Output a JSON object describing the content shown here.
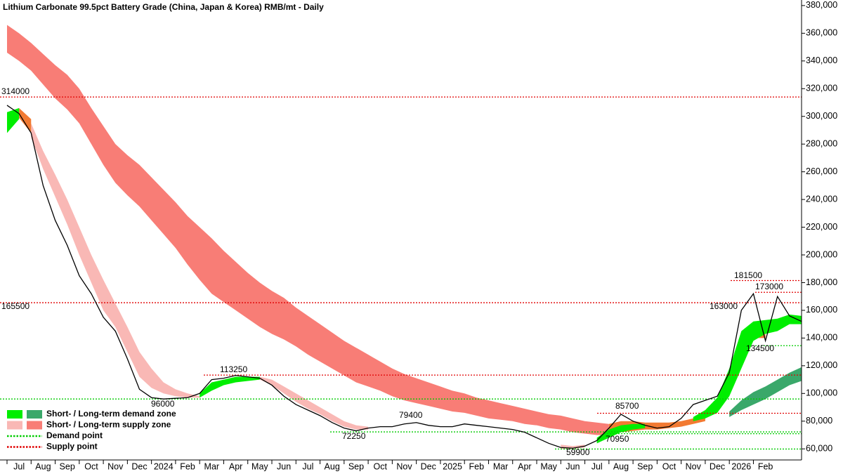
{
  "chart_data": {
    "type": "zone",
    "title": "Lithium Carbonate 99.5pct Battery Grade (China, Japan & Korea) RMB/mt - Daily",
    "categories": [
      "Jul",
      null,
      "Aug",
      null,
      "Sep",
      null,
      "Oct",
      null,
      "Nov",
      null,
      "Dec",
      null,
      "2024",
      null,
      "Feb",
      null,
      "Mar",
      null,
      "Apr",
      null,
      "May",
      null,
      "Jun",
      null,
      "Jul",
      null,
      "Aug",
      null,
      "Sep",
      null,
      "Oct",
      null,
      "Nov",
      null,
      "Dec",
      null,
      "2025",
      null,
      "Feb",
      null,
      "Mar",
      null,
      "Apr",
      null,
      "May",
      null,
      "Jun",
      null,
      "Jul",
      null,
      "Aug",
      null,
      "Sep",
      null,
      "Oct",
      null,
      "Nov",
      null,
      "Dec",
      null,
      "2026",
      null,
      "Feb",
      null,
      null,
      null,
      null
    ],
    "ylim": [
      52000,
      384000
    ],
    "yticks": [
      {
        "value": 60000,
        "label": "60,000"
      },
      {
        "value": 80000,
        "label": "80,000"
      },
      {
        "value": 100000,
        "label": "100,000"
      },
      {
        "value": 120000,
        "label": "120,000"
      },
      {
        "value": 140000,
        "label": "140,000"
      },
      {
        "value": 160000,
        "label": "160,000"
      },
      {
        "value": 180000,
        "label": "180,000"
      },
      {
        "value": 200000,
        "label": "200,000"
      },
      {
        "value": 220000,
        "label": "220,000"
      },
      {
        "value": 240000,
        "label": "240,000"
      },
      {
        "value": 260000,
        "label": "260,000"
      },
      {
        "value": 280000,
        "label": "280,000"
      },
      {
        "value": 300000,
        "label": "300,000"
      },
      {
        "value": 320000,
        "label": "320,000"
      },
      {
        "value": 340000,
        "label": "340,000"
      },
      {
        "value": 360000,
        "label": "360,000"
      },
      {
        "value": 380000,
        "label": "380,000"
      }
    ],
    "price": {
      "color": "#000000",
      "values": [
        308000,
        302000,
        288000,
        250000,
        225000,
        207000,
        185000,
        172000,
        155000,
        145000,
        125000,
        103000,
        97000,
        96000,
        96500,
        97000,
        100000,
        110000,
        111000,
        113000,
        112000,
        111000,
        106000,
        98000,
        92000,
        88000,
        84000,
        79000,
        75000,
        73000,
        75000,
        76000,
        76000,
        78000,
        79000,
        77000,
        76000,
        76000,
        78000,
        77000,
        76000,
        75000,
        74000,
        72000,
        68000,
        64000,
        61000,
        60500,
        62000,
        66000,
        75000,
        85000,
        80000,
        77000,
        75000,
        76000,
        82000,
        92000,
        95000,
        98000,
        115000,
        160000,
        172000,
        138000,
        170000,
        156000,
        152000
      ]
    },
    "bands": [
      {
        "color": "#f87d76",
        "upper": [
          366000,
          360000,
          353000,
          345000,
          337000,
          330000,
          320000,
          306000,
          293000,
          280000,
          272000,
          265000,
          256000,
          247000,
          238000,
          228000,
          220000,
          212000,
          203000,
          195000,
          187000,
          180000,
          174000,
          169000,
          162000,
          156000,
          150000,
          144000,
          138000,
          133000,
          128000,
          123000,
          118000,
          114000,
          111000,
          108000,
          105000,
          102000,
          100000,
          97000,
          95000,
          93000,
          91000,
          89000,
          87000,
          85000,
          84000,
          82000,
          80000,
          79000,
          78000,
          null,
          null,
          null,
          null,
          null,
          null,
          null,
          null,
          null,
          null,
          null,
          null,
          null,
          null,
          null,
          null
        ],
        "lower": [
          346000,
          340000,
          333000,
          323000,
          313000,
          305000,
          295000,
          280000,
          265000,
          252000,
          243000,
          235000,
          225000,
          215000,
          205000,
          193000,
          182000,
          172000,
          166000,
          160000,
          154000,
          148000,
          143000,
          139000,
          134000,
          128000,
          123000,
          118000,
          113000,
          108000,
          105000,
          102000,
          98000,
          95000,
          93000,
          91000,
          89000,
          87000,
          86000,
          84000,
          82000,
          81000,
          80000,
          78000,
          77000,
          75000,
          74000,
          72000,
          71000,
          70000,
          70000,
          null,
          null,
          null,
          null,
          null,
          null,
          null,
          null,
          null,
          null,
          null,
          null,
          null,
          null,
          null,
          null
        ]
      },
      {
        "color": "#f9b8b5",
        "upper": [
          null,
          null,
          295000,
          275000,
          258000,
          240000,
          220000,
          200000,
          182000,
          165000,
          148000,
          130000,
          118000,
          108000,
          103000,
          100000,
          98000,
          null,
          null,
          null,
          null,
          112000,
          110000,
          105000,
          100000,
          95000,
          90000,
          85000,
          80000,
          77000,
          76000,
          null,
          null,
          null,
          null,
          null,
          null,
          null,
          null,
          null,
          null,
          null,
          null,
          null,
          null,
          null,
          63000,
          62000,
          63000,
          null,
          null,
          null,
          null,
          null,
          null,
          null,
          null,
          null,
          null,
          null,
          null,
          null,
          null,
          null,
          null,
          null,
          null
        ],
        "lower": [
          null,
          null,
          285000,
          262000,
          242000,
          222000,
          200000,
          180000,
          160000,
          148000,
          130000,
          112000,
          104000,
          100000,
          98000,
          97000,
          97000,
          null,
          null,
          null,
          null,
          110000,
          106000,
          100000,
          94000,
          89000,
          85000,
          80000,
          76000,
          74000,
          74000,
          null,
          null,
          null,
          null,
          null,
          null,
          null,
          null,
          null,
          null,
          null,
          null,
          null,
          null,
          null,
          60000,
          60000,
          61000,
          null,
          null,
          null,
          null,
          null,
          null,
          null,
          null,
          null,
          null,
          null,
          null,
          null,
          null,
          null,
          null,
          null,
          null
        ]
      },
      {
        "color": "#f27a32",
        "upper": [
          null,
          306000,
          298000,
          null,
          null,
          null,
          null,
          null,
          null,
          null,
          null,
          null,
          null,
          null,
          null,
          null,
          null,
          null,
          null,
          null,
          null,
          null,
          null,
          null,
          null,
          null,
          null,
          null,
          null,
          null,
          null,
          null,
          null,
          null,
          null,
          null,
          null,
          null,
          null,
          null,
          null,
          null,
          null,
          null,
          null,
          null,
          null,
          null,
          null,
          null,
          78000,
          80000,
          80000,
          79000,
          79000,
          79000,
          80000,
          82000,
          84000,
          null,
          null,
          null,
          150000,
          148000,
          null,
          null,
          null
        ],
        "lower": [
          null,
          299000,
          288000,
          null,
          null,
          null,
          null,
          null,
          null,
          null,
          null,
          null,
          null,
          null,
          null,
          null,
          null,
          null,
          null,
          null,
          null,
          null,
          null,
          null,
          null,
          null,
          null,
          null,
          null,
          null,
          null,
          null,
          null,
          null,
          null,
          null,
          null,
          null,
          null,
          null,
          null,
          null,
          null,
          null,
          null,
          null,
          null,
          null,
          null,
          null,
          72000,
          72000,
          73000,
          74000,
          74000,
          75000,
          76000,
          78000,
          80000,
          null,
          null,
          null,
          140000,
          140000,
          null,
          null,
          null
        ]
      },
      {
        "color": "#00ee00",
        "upper": [
          303000,
          306000,
          null,
          null,
          null,
          null,
          null,
          null,
          null,
          null,
          null,
          null,
          null,
          null,
          null,
          null,
          100000,
          108000,
          110000,
          112000,
          112000,
          112000,
          null,
          null,
          null,
          null,
          null,
          null,
          null,
          null,
          null,
          null,
          null,
          null,
          null,
          null,
          null,
          null,
          null,
          null,
          null,
          null,
          null,
          null,
          null,
          null,
          null,
          null,
          null,
          68000,
          74000,
          77000,
          78000,
          78000,
          null,
          null,
          null,
          83000,
          88000,
          97000,
          118000,
          145000,
          152000,
          153000,
          154000,
          157000,
          156000
        ],
        "lower": [
          288000,
          298000,
          null,
          null,
          null,
          null,
          null,
          null,
          null,
          null,
          null,
          null,
          null,
          null,
          null,
          null,
          97000,
          102000,
          106000,
          108000,
          109000,
          110000,
          null,
          null,
          null,
          null,
          null,
          null,
          null,
          null,
          null,
          null,
          null,
          null,
          null,
          null,
          null,
          null,
          null,
          null,
          null,
          null,
          null,
          null,
          null,
          null,
          null,
          null,
          null,
          64000,
          68000,
          72000,
          74000,
          75000,
          null,
          null,
          null,
          80000,
          82000,
          86000,
          98000,
          118000,
          138000,
          143000,
          145000,
          150000,
          150000
        ]
      },
      {
        "color": "#3aa86a",
        "upper": [
          null,
          null,
          null,
          null,
          null,
          null,
          null,
          null,
          null,
          null,
          null,
          null,
          null,
          null,
          null,
          null,
          null,
          null,
          null,
          null,
          null,
          null,
          null,
          null,
          null,
          null,
          null,
          null,
          null,
          null,
          null,
          null,
          null,
          null,
          null,
          null,
          null,
          null,
          null,
          null,
          null,
          null,
          null,
          null,
          null,
          null,
          null,
          null,
          null,
          null,
          null,
          null,
          null,
          null,
          null,
          null,
          null,
          null,
          null,
          null,
          87000,
          95000,
          101000,
          105000,
          110000,
          115000,
          119000
        ],
        "lower": [
          null,
          null,
          null,
          null,
          null,
          null,
          null,
          null,
          null,
          null,
          null,
          null,
          null,
          null,
          null,
          null,
          null,
          null,
          null,
          null,
          null,
          null,
          null,
          null,
          null,
          null,
          null,
          null,
          null,
          null,
          null,
          null,
          null,
          null,
          null,
          null,
          null,
          null,
          null,
          null,
          null,
          null,
          null,
          null,
          null,
          null,
          null,
          null,
          null,
          null,
          null,
          null,
          null,
          null,
          null,
          null,
          null,
          null,
          null,
          null,
          83000,
          88000,
          92000,
          96000,
          101000,
          106000,
          109000
        ]
      }
    ],
    "levels": [
      {
        "value": 314000,
        "color": "#e00000"
      },
      {
        "value": 165500,
        "color": "#e00000"
      },
      {
        "value": 181500,
        "color": "#e00000"
      },
      {
        "value": 173000,
        "color": "#e00000"
      },
      {
        "value": 113250,
        "color": "#e00000"
      },
      {
        "value": 96000,
        "color": "#00cc00"
      },
      {
        "value": 85700,
        "color": "#e00000"
      },
      {
        "value": 134500,
        "color": "#00cc00"
      },
      {
        "value": 72250,
        "color": "#00cc00"
      },
      {
        "value": 70950,
        "color": "#00cc00"
      },
      {
        "value": 59900,
        "color": "#00cc00"
      }
    ],
    "annotations": [
      79400,
      163000
    ],
    "legend": [
      {
        "label": "Short- / Long-term demand zone",
        "colors": [
          "#00ee00",
          "#3aa86a"
        ]
      },
      {
        "label": "Short- / Long-term supply zone",
        "colors": [
          "#f9b8b5",
          "#f87d76"
        ]
      },
      {
        "label": "Demand point",
        "colors": [
          "#00cc00"
        ],
        "style": "dotted"
      },
      {
        "label": "Supply point",
        "colors": [
          "#e00000"
        ],
        "style": "dotted"
      }
    ]
  }
}
